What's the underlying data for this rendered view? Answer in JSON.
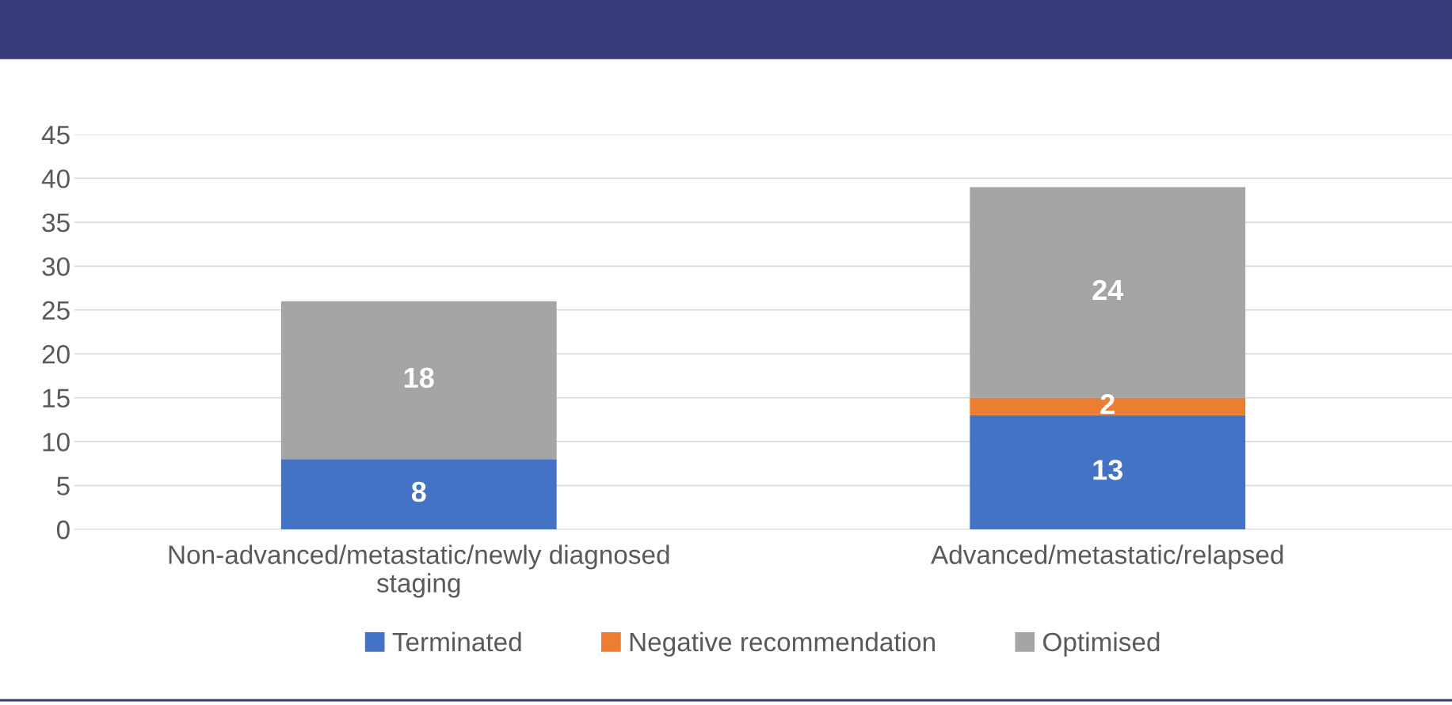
{
  "chart_data": {
    "type": "bar",
    "stacked": true,
    "categories": [
      "Non-advanced/metastatic/newly diagnosed staging",
      "Advanced/metastatic/relapsed"
    ],
    "series": [
      {
        "name": "Terminated",
        "color": "#4472c4",
        "values": [
          8,
          13
        ]
      },
      {
        "name": "Negative recommendation",
        "color": "#ed7d31",
        "values": [
          null,
          2
        ]
      },
      {
        "name": "Optimised",
        "color": "#a5a5a5",
        "values": [
          18,
          24
        ]
      }
    ],
    "ylim": [
      0,
      45
    ],
    "yticks": [
      0,
      5,
      10,
      15,
      20,
      25,
      30,
      35,
      40,
      45
    ],
    "grid": "y",
    "legend": "bottom",
    "data_labels": true
  }
}
